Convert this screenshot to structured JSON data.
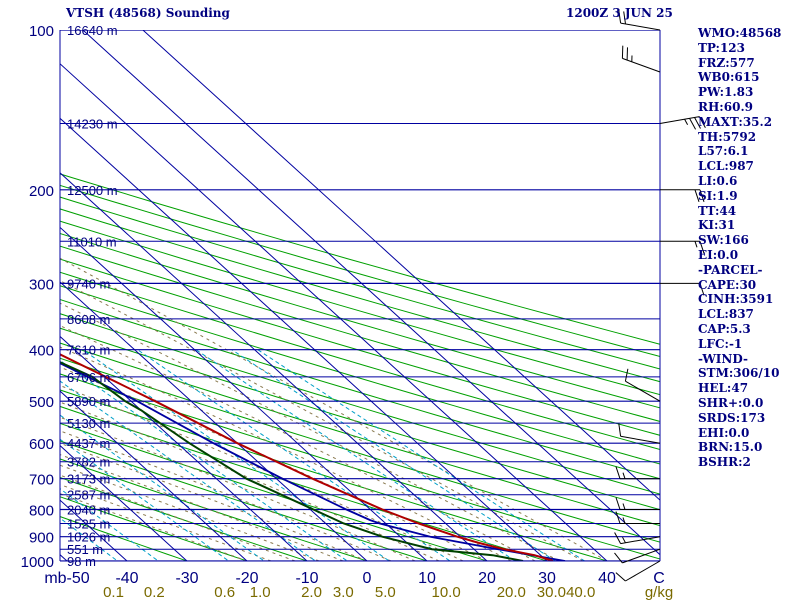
{
  "header": {
    "station": "VTSH (48568) Sounding",
    "time": "1200Z  3 JUN 25"
  },
  "indices": [
    "WMO:48568",
    "TP:123",
    "FRZ:577",
    "WB0:615",
    "PW:1.83",
    "RH:60.9",
    "MAXT:35.2",
    "TH:5792",
    "L57:6.1",
    "LCL:987",
    "LI:0.6",
    "SI:1.9",
    "TT:44",
    "KI:31",
    "SW:166",
    "EI:0.0",
    "-PARCEL-",
    "CAPE:30",
    "CINH:3591",
    "LCL:837",
    "CAP:5.3",
    "LFC:-1",
    "-WIND-",
    "STM:306/10",
    "HEL:47",
    "SHR+:0.0",
    "SRDS:173",
    "EHI:0.0",
    "BRN:15.0",
    "BSHR:2"
  ],
  "colors": {
    "isobar": "#0000a0",
    "isotherm": "#0000a0",
    "dry_adiabat": "#00a000",
    "moist_adiabat": "#8a7a50",
    "mixing_ratio": "#00a0c8",
    "temperature": "#b00000",
    "dewpoint": "#004000",
    "parcel": "#0000a0",
    "axis_text": "#000080",
    "mixratio_text": "#7a6a00"
  },
  "chart_data": {
    "type": "skew-t",
    "yscale": "log-pressure",
    "ylim": [
      1000,
      100
    ],
    "xlim": [
      -50,
      50
    ],
    "p_ticks": [
      100,
      200,
      300,
      400,
      500,
      600,
      700,
      800,
      900,
      1000
    ],
    "t_ticks": [
      -50,
      -40,
      -30,
      -20,
      -10,
      0,
      10,
      20,
      30,
      40
    ],
    "t_tick_labels": [
      "mb-50",
      "-40",
      "-30",
      "-20",
      "-10",
      "0",
      "10",
      "20",
      "30",
      "40"
    ],
    "x_end_label": "C",
    "mixing_ratio_labels": [
      "0.1",
      "0.2",
      "0.6",
      "1.0",
      "2.0",
      "3.0",
      "5.0",
      "10.0",
      "20.0",
      "30.0",
      "40.0"
    ],
    "mixing_ratio_values": [
      0.1,
      0.2,
      0.6,
      1.0,
      2.0,
      3.0,
      5.0,
      10.0,
      20.0,
      30.0,
      40.0
    ],
    "mixing_ratio_unit": "g/kg",
    "height_labels": [
      {
        "p": 100,
        "text": "16640 m"
      },
      {
        "p": 150,
        "text": "14230 m"
      },
      {
        "p": 200,
        "text": "12500 m"
      },
      {
        "p": 250,
        "text": "11010 m"
      },
      {
        "p": 300,
        "text": "9740 m"
      },
      {
        "p": 350,
        "text": "8608 m"
      },
      {
        "p": 400,
        "text": "7610 m"
      },
      {
        "p": 450,
        "text": "6706 m"
      },
      {
        "p": 500,
        "text": "5890 m"
      },
      {
        "p": 550,
        "text": "5130 m"
      },
      {
        "p": 600,
        "text": "4437 m"
      },
      {
        "p": 650,
        "text": "3782 m"
      },
      {
        "p": 700,
        "text": "3173 m"
      },
      {
        "p": 750,
        "text": "2587 m"
      },
      {
        "p": 800,
        "text": "2040 m"
      },
      {
        "p": 850,
        "text": "1525 m"
      },
      {
        "p": 900,
        "text": "1026 m"
      },
      {
        "p": 950,
        "text": "551 m"
      },
      {
        "p": 1000,
        "text": "98 m"
      }
    ],
    "temperature": [
      {
        "p": 1000,
        "t": 31
      },
      {
        "p": 975,
        "t": 29
      },
      {
        "p": 950,
        "t": 25
      },
      {
        "p": 925,
        "t": 22
      },
      {
        "p": 900,
        "t": 19.5
      },
      {
        "p": 850,
        "t": 15.5
      },
      {
        "p": 800,
        "t": 12
      },
      {
        "p": 700,
        "t": 6
      },
      {
        "p": 600,
        "t": 0
      },
      {
        "p": 500,
        "t": -6
      },
      {
        "p": 400,
        "t": -14
      },
      {
        "p": 350,
        "t": -19
      },
      {
        "p": 330,
        "t": -21
      },
      {
        "p": 300,
        "t": -27
      },
      {
        "p": 250,
        "t": -37
      },
      {
        "p": 200,
        "t": -48
      },
      {
        "p": 150,
        "t": -63
      },
      {
        "p": 120,
        "t": -76
      },
      {
        "p": 110,
        "t": -73
      },
      {
        "p": 100,
        "t": -73
      }
    ],
    "dewpoint": [
      {
        "p": 1000,
        "t": 26
      },
      {
        "p": 975,
        "t": 22
      },
      {
        "p": 950,
        "t": 13
      },
      {
        "p": 900,
        "t": 7
      },
      {
        "p": 850,
        "t": 3
      },
      {
        "p": 700,
        "t": -5
      },
      {
        "p": 600,
        "t": -8
      },
      {
        "p": 520,
        "t": -10
      },
      {
        "p": 500,
        "t": -11
      },
      {
        "p": 450,
        "t": -12
      },
      {
        "p": 400,
        "t": -17
      },
      {
        "p": 350,
        "t": -23
      },
      {
        "p": 300,
        "t": -29
      },
      {
        "p": 250,
        "t": -41
      },
      {
        "p": 200,
        "t": -56
      },
      {
        "p": 160,
        "t": -74
      },
      {
        "p": 140,
        "t": -84
      },
      {
        "p": 130,
        "t": -89
      },
      {
        "p": 120,
        "t": -92
      },
      {
        "p": 110,
        "t": -92
      },
      {
        "p": 100,
        "t": -92
      }
    ],
    "parcel": [
      {
        "p": 1000,
        "t": 33
      },
      {
        "p": 950,
        "t": 24
      },
      {
        "p": 900,
        "t": 15
      },
      {
        "p": 850,
        "t": 9
      },
      {
        "p": 837,
        "t": 8
      },
      {
        "p": 800,
        "t": 6
      },
      {
        "p": 700,
        "t": 1
      },
      {
        "p": 600,
        "t": -4
      },
      {
        "p": 500,
        "t": -9
      },
      {
        "p": 400,
        "t": -17
      },
      {
        "p": 300,
        "t": -29
      },
      {
        "p": 250,
        "t": -40
      },
      {
        "p": 200,
        "t": -56
      },
      {
        "p": 150,
        "t": -78
      },
      {
        "p": 120,
        "t": -94
      }
    ],
    "wind_barbs": [
      {
        "p": 100,
        "dir": 280,
        "spd": 20
      },
      {
        "p": 120,
        "dir": 290,
        "spd": 25
      },
      {
        "p": 150,
        "dir": 80,
        "spd": 35
      },
      {
        "p": 200,
        "dir": 90,
        "spd": 20
      },
      {
        "p": 250,
        "dir": 90,
        "spd": 15
      },
      {
        "p": 300,
        "dir": 90,
        "spd": 10
      },
      {
        "p": 500,
        "dir": 300,
        "spd": 10
      },
      {
        "p": 600,
        "dir": 280,
        "spd": 10
      },
      {
        "p": 700,
        "dir": 270,
        "spd": 15
      },
      {
        "p": 800,
        "dir": 270,
        "spd": 15
      },
      {
        "p": 850,
        "dir": 270,
        "spd": 15
      },
      {
        "p": 900,
        "dir": 260,
        "spd": 15
      },
      {
        "p": 950,
        "dir": 250,
        "spd": 10
      },
      {
        "p": 1000,
        "dir": 240,
        "spd": 10
      }
    ]
  }
}
